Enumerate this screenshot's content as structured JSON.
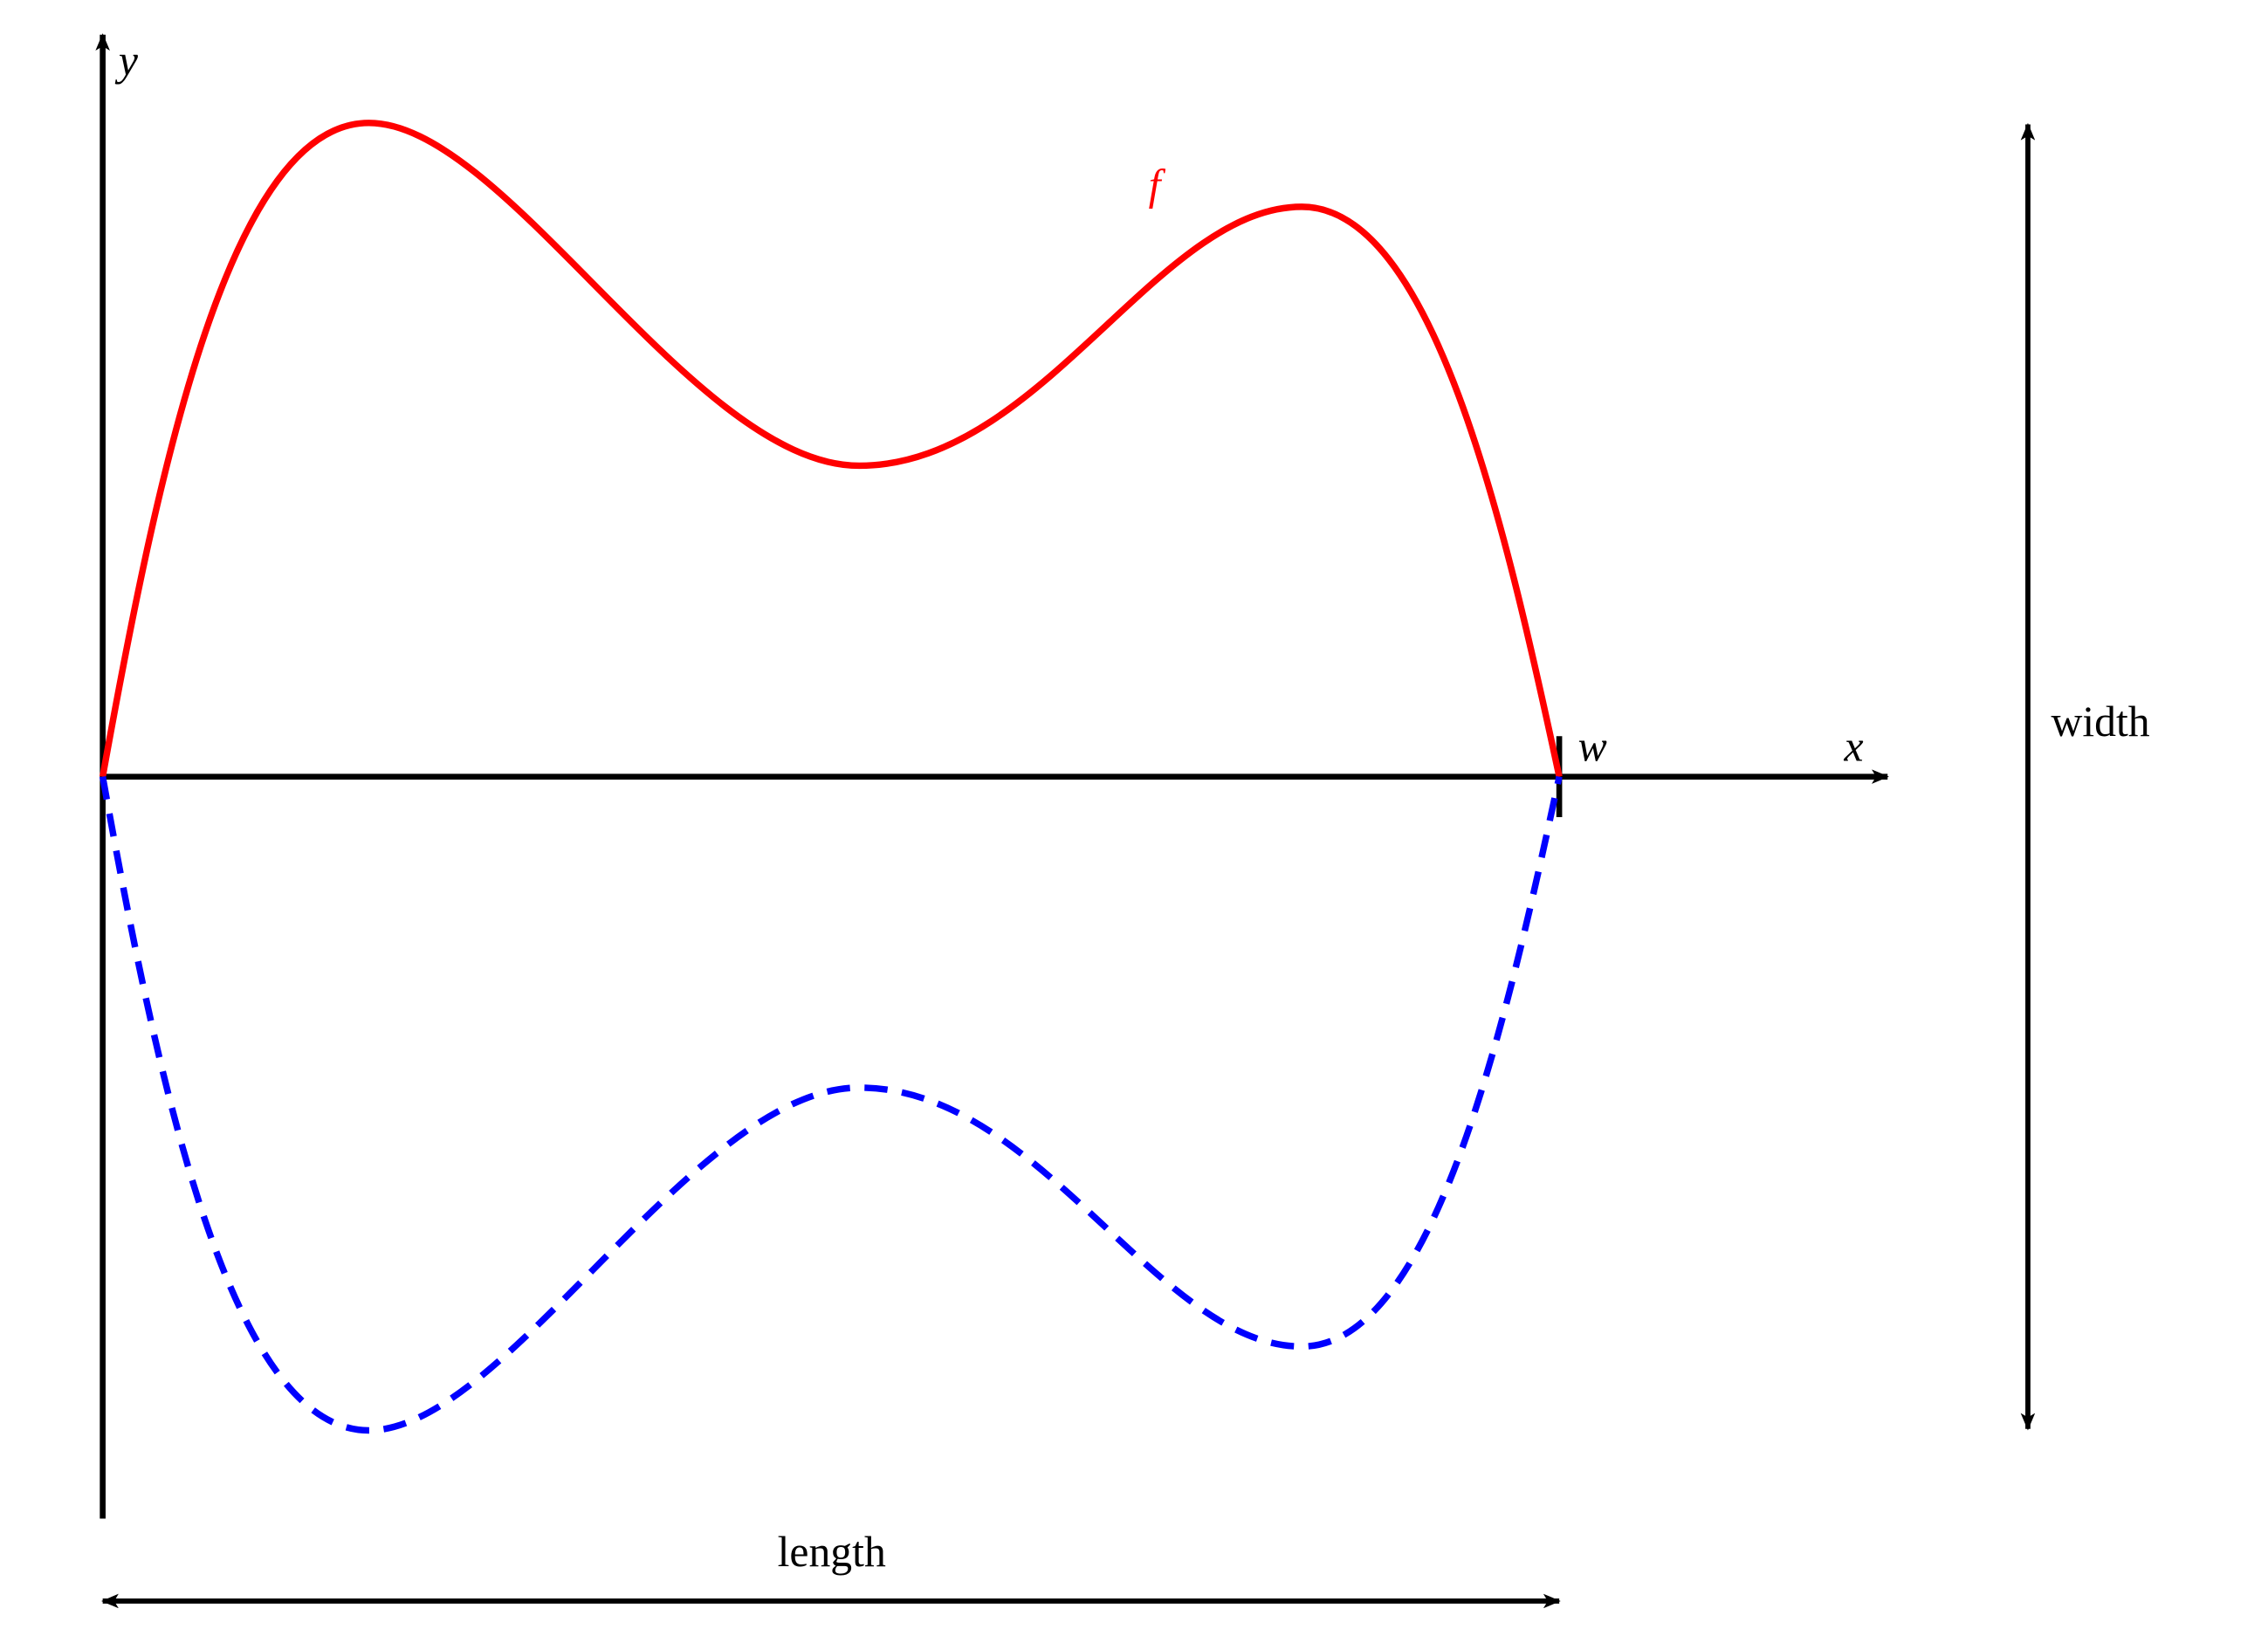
{
  "labels": {
    "y_axis": "y",
    "function": "f",
    "w_mark": "w",
    "x_axis": "x",
    "width": "width",
    "length": "length"
  }
}
